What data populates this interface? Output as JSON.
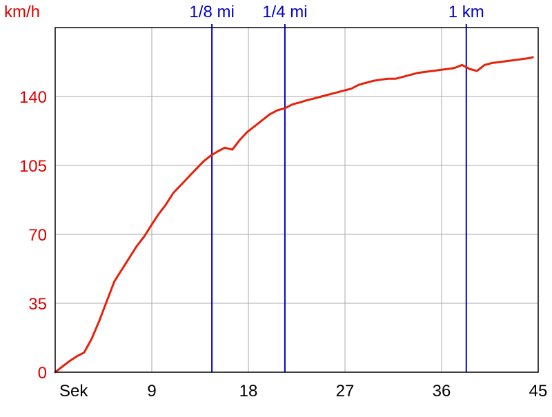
{
  "chart_data": {
    "type": "line",
    "ylabel": "km/h",
    "xlabel": "Sek",
    "xlim": [
      0,
      45
    ],
    "ylim": [
      0,
      175
    ],
    "x_ticks": [
      9,
      18,
      27,
      36,
      45
    ],
    "x_tick_labels": [
      "9",
      "18",
      "27",
      "36",
      "45"
    ],
    "y_ticks": [
      0,
      35,
      70,
      105,
      140
    ],
    "y_tick_labels": [
      "0",
      "35",
      "70",
      "105",
      "140"
    ],
    "grid": true,
    "markers": [
      {
        "label": "1/8 mi",
        "x": 14.6
      },
      {
        "label": "1/4 mi",
        "x": 21.4
      },
      {
        "label": "1 km",
        "x": 38.3
      }
    ],
    "series": [
      {
        "x": [
          0,
          0.7,
          1.3,
          2.0,
          2.7,
          3.4,
          4.1,
          4.8,
          5.5,
          6.2,
          6.9,
          7.6,
          8.3,
          9.0,
          9.6,
          10.3,
          11.0,
          11.7,
          12.4,
          13.1,
          13.8,
          14.5,
          15.1,
          15.8,
          16.5,
          17.2,
          17.9,
          18.6,
          19.3,
          20.0,
          20.7,
          21.4,
          22.1,
          22.8,
          23.4,
          24.1,
          24.8,
          25.5,
          26.2,
          26.9,
          27.6,
          28.3,
          29.0,
          29.7,
          30.3,
          31.0,
          31.7,
          32.4,
          33.1,
          33.8,
          34.5,
          35.2,
          35.9,
          36.6,
          37.2,
          37.9,
          38.6,
          39.3,
          40.0,
          40.7,
          41.4,
          42.1,
          42.8,
          43.5,
          44.2,
          44.5
        ],
        "y": [
          0,
          3,
          5.5,
          8,
          10,
          17,
          26,
          36,
          46,
          52,
          58,
          64,
          69,
          75,
          80,
          85,
          91,
          95,
          99,
          103,
          107,
          110,
          112,
          114,
          113,
          118,
          122,
          125,
          128,
          131,
          133,
          134,
          136,
          137,
          138,
          139,
          140,
          141,
          142,
          143,
          144,
          146,
          147,
          148,
          148.5,
          149,
          149,
          150,
          151,
          152,
          152.5,
          153,
          153.5,
          154,
          154.5,
          156,
          154,
          153,
          156,
          157,
          157.5,
          158,
          158.5,
          159,
          159.5,
          160
        ],
        "color": "#e8200a"
      }
    ],
    "colors": {
      "axis_text": "#e00000",
      "marker_line": "#0000cc",
      "marker_text": "#0000cc",
      "grid": "#aaaaaa",
      "frame": "#000000",
      "x_tick_text": "#000000"
    }
  }
}
